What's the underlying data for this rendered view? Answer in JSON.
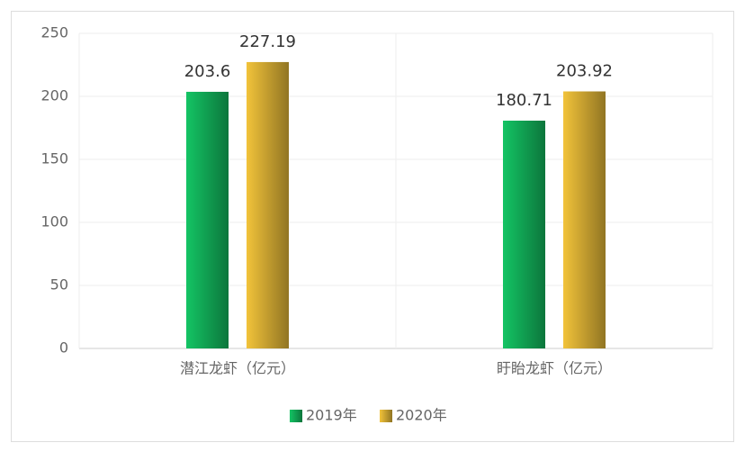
{
  "chart_data": {
    "type": "bar",
    "categories": [
      "潜江龙虾（亿元）",
      "盱眙龙虾（亿元）"
    ],
    "series": [
      {
        "name": "2019年",
        "color": "#14c464",
        "values": [
          203.6,
          180.71
        ]
      },
      {
        "name": "2020年",
        "color": "#f2c33a",
        "values": [
          227.19,
          203.92
        ]
      }
    ],
    "ylim": [
      0,
      250
    ],
    "yticks": [
      0,
      50,
      100,
      150,
      200,
      250
    ],
    "grid": true,
    "legend": "bottom"
  }
}
